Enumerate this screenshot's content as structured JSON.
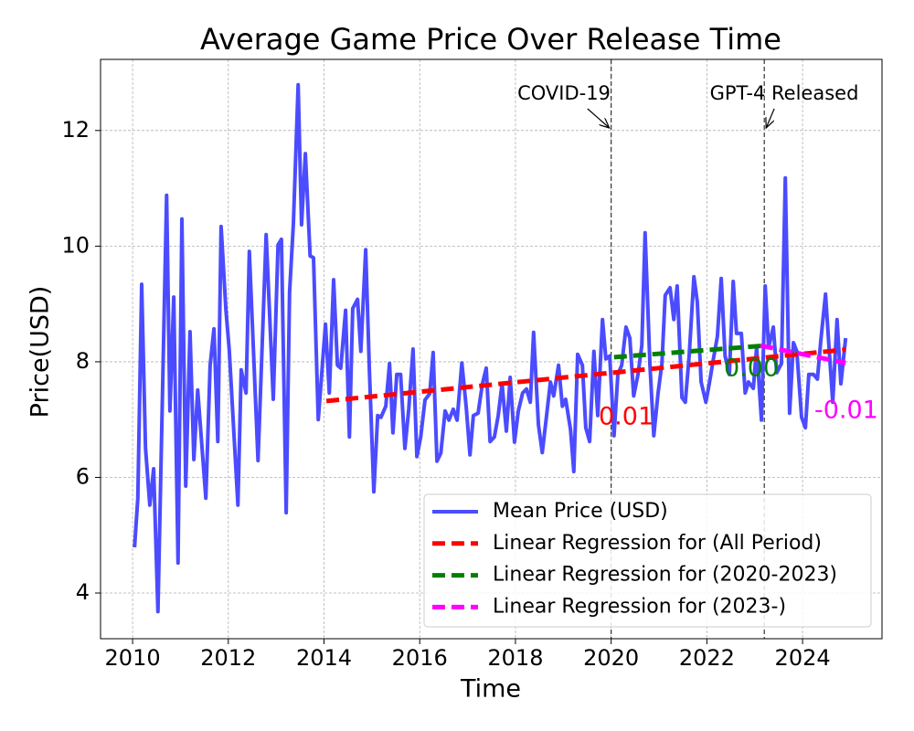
{
  "chart_data": {
    "type": "line",
    "title": "Average Game Price Over Release Time",
    "xlabel": "Time",
    "ylabel": "Price(USD)",
    "xlim": [
      2009.33,
      2025.66
    ],
    "ylim": [
      3.21,
      13.23
    ],
    "xticks": [
      2010,
      2012,
      2014,
      2016,
      2018,
      2020,
      2022,
      2024
    ],
    "yticks": [
      4,
      6,
      8,
      10,
      12
    ],
    "grid": true,
    "legend": "lower right",
    "events": [
      {
        "label": "COVID-19",
        "x": 2020.0
      },
      {
        "label": "GPT-4 Released",
        "x": 2023.2
      }
    ],
    "series": [
      {
        "name": "Mean Price (USD)",
        "color": "#4b4bff",
        "dash": false,
        "x": [
          2010.04,
          2010.11,
          2010.19,
          2010.27,
          2010.36,
          2010.44,
          2010.53,
          2010.71,
          2010.78,
          2010.86,
          2010.95,
          2011.03,
          2011.11,
          2011.2,
          2011.28,
          2011.36,
          2011.53,
          2011.62,
          2011.7,
          2011.78,
          2011.85,
          2011.95,
          2012.02,
          2012.2,
          2012.27,
          2012.37,
          2012.44,
          2012.62,
          2012.79,
          2012.94,
          2013.04,
          2013.11,
          2013.21,
          2013.28,
          2013.36,
          2013.46,
          2013.53,
          2013.61,
          2013.71,
          2013.78,
          2013.88,
          2014.03,
          2014.11,
          2014.2,
          2014.28,
          2014.35,
          2014.45,
          2014.53,
          2014.6,
          2014.7,
          2014.77,
          2014.87,
          2014.95,
          2015.04,
          2015.12,
          2015.19,
          2015.29,
          2015.37,
          2015.44,
          2015.52,
          2015.6,
          2015.69,
          2015.77,
          2015.86,
          2015.94,
          2016.02,
          2016.11,
          2016.21,
          2016.28,
          2016.36,
          2016.44,
          2016.53,
          2016.61,
          2016.7,
          2016.78,
          2016.88,
          2016.97,
          2017.05,
          2017.12,
          2017.22,
          2017.31,
          2017.39,
          2017.47,
          2017.56,
          2017.64,
          2017.72,
          2017.81,
          2017.89,
          2017.98,
          2018.06,
          2018.15,
          2018.23,
          2018.31,
          2018.38,
          2018.48,
          2018.56,
          2018.65,
          2018.73,
          2018.8,
          2018.9,
          2018.98,
          2019.05,
          2019.15,
          2019.22,
          2019.3,
          2019.4,
          2019.47,
          2019.55,
          2019.64,
          2019.72,
          2019.82,
          2019.89,
          2019.97,
          2020.06,
          2020.14,
          2020.22,
          2020.31,
          2020.39,
          2020.47,
          2020.56,
          2020.64,
          2020.71,
          2020.81,
          2020.89,
          2020.98,
          2021.06,
          2021.13,
          2021.23,
          2021.31,
          2021.38,
          2021.48,
          2021.55,
          2021.63,
          2021.73,
          2021.8,
          2021.88,
          2021.98,
          2022.05,
          2022.13,
          2022.22,
          2022.3,
          2022.38,
          2022.47,
          2022.55,
          2022.62,
          2022.72,
          2022.8,
          2022.87,
          2022.97,
          2023.04,
          2023.14,
          2023.22,
          2023.29,
          2023.39,
          2023.46,
          2023.56,
          2023.64,
          2023.73,
          2023.81,
          2023.88,
          2023.98,
          2024.06,
          2024.13,
          2024.23,
          2024.31,
          2024.38,
          2024.48,
          2024.55,
          2024.63,
          2024.72,
          2024.8,
          2024.9
        ],
        "values": [
          4.79,
          5.64,
          9.34,
          6.51,
          5.52,
          6.15,
          3.68,
          10.88,
          7.15,
          9.12,
          4.52,
          10.47,
          5.85,
          8.52,
          6.31,
          7.51,
          5.64,
          7.94,
          8.57,
          6.62,
          10.34,
          8.89,
          8.21,
          5.52,
          7.86,
          7.46,
          9.91,
          6.29,
          10.2,
          7.35,
          10.02,
          10.12,
          5.39,
          9.2,
          10.39,
          12.79,
          10.37,
          11.6,
          9.83,
          9.8,
          7.0,
          8.65,
          7.46,
          9.42,
          7.94,
          7.89,
          8.89,
          6.7,
          8.92,
          9.08,
          8.18,
          9.94,
          7.83,
          5.75,
          7.07,
          7.04,
          7.23,
          7.97,
          6.77,
          7.78,
          7.78,
          6.5,
          7.18,
          8.22,
          6.36,
          6.7,
          7.34,
          7.45,
          8.16,
          6.28,
          6.42,
          7.15,
          6.99,
          7.18,
          6.99,
          7.98,
          7.23,
          6.39,
          7.07,
          7.11,
          7.62,
          7.89,
          6.62,
          6.7,
          7.07,
          7.62,
          6.8,
          7.73,
          6.61,
          7.15,
          7.46,
          7.53,
          7.3,
          8.51,
          6.91,
          6.43,
          7.07,
          7.65,
          7.41,
          7.94,
          7.23,
          7.35,
          6.83,
          6.1,
          8.13,
          7.94,
          6.86,
          6.62,
          8.18,
          7.07,
          8.73,
          8.05,
          8.1,
          6.72,
          7.78,
          7.94,
          8.6,
          8.41,
          7.41,
          7.78,
          8.28,
          10.23,
          7.94,
          6.72,
          7.46,
          7.97,
          9.15,
          9.28,
          8.73,
          9.31,
          7.38,
          7.3,
          8.1,
          9.47,
          9.04,
          7.65,
          7.3,
          7.62,
          8.02,
          8.44,
          9.44,
          8.1,
          7.78,
          9.39,
          8.49,
          8.49,
          7.46,
          7.65,
          7.54,
          8.25,
          6.99,
          9.31,
          8.25,
          8.6,
          7.81,
          7.97,
          11.18,
          7.11,
          8.33,
          8.18,
          7.04,
          6.86,
          7.78,
          7.78,
          7.7,
          8.36,
          9.17,
          8.28,
          7.3,
          8.73,
          7.62,
          8.41
        ]
      },
      {
        "name": "Linear Regression for (All Period)",
        "color": "#ff0000",
        "dash": true,
        "slope_label": "0.01",
        "x": [
          2014.05,
          2024.9
        ],
        "values": [
          7.32,
          8.21
        ]
      },
      {
        "name": "Linear Regression for (2020-2023)",
        "color": "#008000",
        "dash": true,
        "slope_label": "0.00",
        "x": [
          2020.06,
          2023.22
        ],
        "values": [
          8.08,
          8.28
        ]
      },
      {
        "name": "Linear Regression for (2023-)",
        "color": "#ff00ff",
        "dash": true,
        "slope_label": "-0.01",
        "x": [
          2023.12,
          2024.9
        ],
        "values": [
          8.28,
          7.98
        ]
      }
    ]
  }
}
